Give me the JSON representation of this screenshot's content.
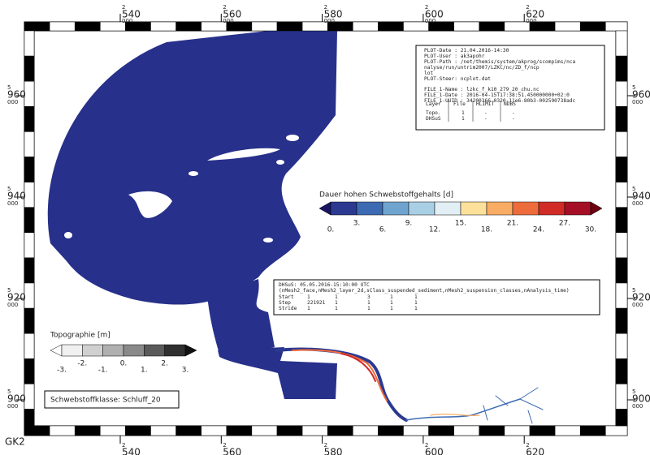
{
  "frame": {
    "corner_label": "GK2",
    "x_ticks": [
      {
        "prefix": "2",
        "main": "540",
        "suffix": "000"
      },
      {
        "prefix": "2",
        "main": "560",
        "suffix": "000"
      },
      {
        "prefix": "2",
        "main": "580",
        "suffix": "000"
      },
      {
        "prefix": "2",
        "main": "600",
        "suffix": "000"
      },
      {
        "prefix": "2",
        "main": "620",
        "suffix": "000"
      }
    ],
    "y_ticks": [
      {
        "prefix": "5",
        "main": "960",
        "suffix": "000"
      },
      {
        "prefix": "5",
        "main": "940",
        "suffix": "000"
      },
      {
        "prefix": "5",
        "main": "920",
        "suffix": "000"
      },
      {
        "prefix": "5",
        "main": "900",
        "suffix": "000"
      }
    ]
  },
  "info_box": {
    "lines": [
      "PLOT-Date : 21.04.2016-14:30",
      "PLOT-User : ak3apohr",
      "PLOT-Path : /net/themis/system/akprog/scompims/nca",
      "nalyse/run/untrim2007/LZKC/nc/ZD_f/ncp",
      "lot",
      "PLOT-Steer: ncplot.dat",
      "FILE_1-Name : lzkc_f_k10_279_20_chu.nc",
      "FILE_1-Date : 2016-04-15T17:38:51.450000000+02:0",
      "FILE_1-UUID : 34200366-0320-11e6-80b3-002590738adc"
    ],
    "table": {
      "header": [
        "Layer",
        "File",
        "HLIMIT",
        "NDBS"
      ],
      "rows": [
        [
          "Topo.",
          "1",
          "-",
          "-"
        ],
        [
          "DHSuS",
          "1",
          "-",
          "-"
        ]
      ]
    }
  },
  "colorbar": {
    "title": "Dauer hohen Schwebstoffgehalts [d]",
    "labels": [
      "0.",
      "3.",
      "6.",
      "9.",
      "12.",
      "15.",
      "18.",
      "21.",
      "24.",
      "27.",
      "30."
    ],
    "colors": [
      "#1b1464",
      "#2b3990",
      "#3d6bb3",
      "#6fa4cf",
      "#a9cfe5",
      "#e2f0f5",
      "#fde09a",
      "#f9ac63",
      "#ee6c3b",
      "#d02b27",
      "#a50f26",
      "#6b0010"
    ]
  },
  "variable_box": {
    "title": "DHSuS: 05.05.2016-15:10:00 UTC",
    "dims": "(nMesh2_face,nMesh2_layer_2d,sClass_suspended_sediment,nMesh2_suspension_classes,nAnalysis_time)",
    "rows": [
      [
        "Start",
        "1",
        "1",
        "3",
        "1",
        "1"
      ],
      [
        "Step",
        "221921",
        "1",
        "1",
        "1",
        "1"
      ],
      [
        "Stride",
        "1",
        "1",
        "1",
        "1",
        "1"
      ]
    ]
  },
  "topo_bar": {
    "title": "Topographie [m]",
    "labels": [
      "-3.",
      "-2.",
      "-1.",
      "0.",
      "1.",
      "2.",
      "3."
    ],
    "colors": [
      "#ffffff",
      "#f0f0f0",
      "#d0d0d0",
      "#b0b0b0",
      "#8a8a8a",
      "#5a5a5a",
      "#303030",
      "#111111"
    ]
  },
  "class_box": {
    "text": "Schwebstoffklasse: Schluff_20"
  }
}
